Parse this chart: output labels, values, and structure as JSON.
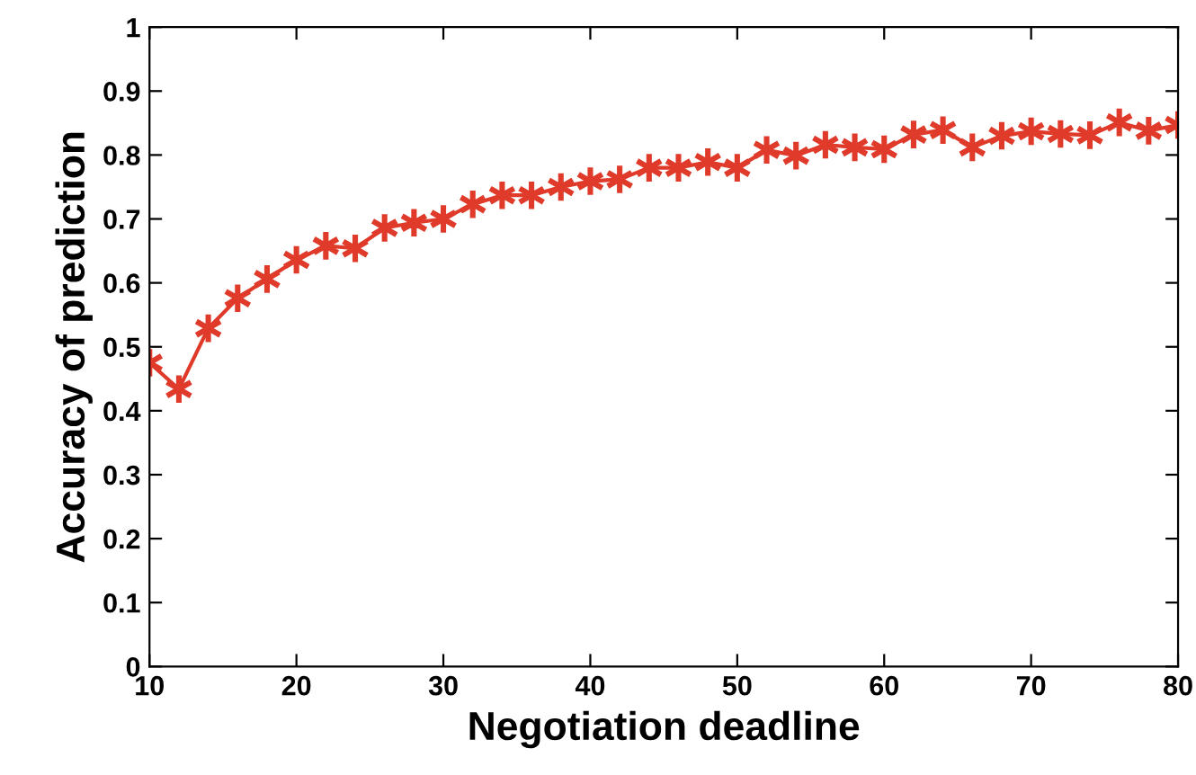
{
  "chart_data": {
    "type": "line",
    "xlabel": "Negotiation deadline",
    "ylabel": "Accuracy of prediction",
    "x": [
      10,
      12,
      14,
      16,
      18,
      20,
      22,
      24,
      26,
      28,
      30,
      32,
      34,
      36,
      38,
      40,
      42,
      44,
      46,
      48,
      50,
      52,
      54,
      56,
      58,
      60,
      62,
      64,
      66,
      68,
      70,
      72,
      74,
      76,
      78,
      80
    ],
    "series": [
      {
        "color": "#e03a2a",
        "values": [
          0.475,
          0.434,
          0.529,
          0.576,
          0.606,
          0.636,
          0.658,
          0.654,
          0.686,
          0.694,
          0.7,
          0.723,
          0.737,
          0.737,
          0.75,
          0.759,
          0.762,
          0.78,
          0.78,
          0.789,
          0.78,
          0.808,
          0.799,
          0.816,
          0.812,
          0.809,
          0.832,
          0.839,
          0.812,
          0.83,
          0.837,
          0.833,
          0.831,
          0.851,
          0.838,
          0.847
        ]
      }
    ],
    "xlim": [
      10,
      80
    ],
    "xticks": [
      10,
      20,
      30,
      40,
      50,
      60,
      70,
      80
    ],
    "ylim": [
      0,
      1
    ],
    "yticks": [
      0,
      0.1,
      0.2,
      0.3,
      0.4,
      0.5,
      0.6,
      0.7,
      0.8,
      0.9,
      1
    ],
    "grid": false,
    "marker": "cross",
    "line_style": "solid"
  }
}
